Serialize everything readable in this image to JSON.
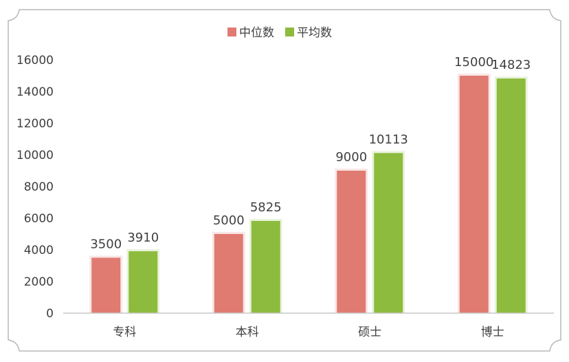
{
  "chart_data": {
    "type": "bar",
    "title": "",
    "xlabel": "",
    "ylabel": "",
    "categories": [
      "专科",
      "本科",
      "硕士",
      "博士"
    ],
    "series": [
      {
        "name": "中位数",
        "values": [
          3500,
          5000,
          9000,
          15000
        ],
        "color": "#e07b72"
      },
      {
        "name": "平均数",
        "values": [
          3910,
          5825,
          10113,
          14823
        ],
        "color": "#8dbb3d"
      }
    ],
    "ylim": [
      0,
      16000
    ],
    "yticks": [
      0,
      2000,
      4000,
      6000,
      8000,
      10000,
      12000,
      14000,
      16000
    ],
    "legend": "top-center",
    "grid": false,
    "data_labels": true
  }
}
